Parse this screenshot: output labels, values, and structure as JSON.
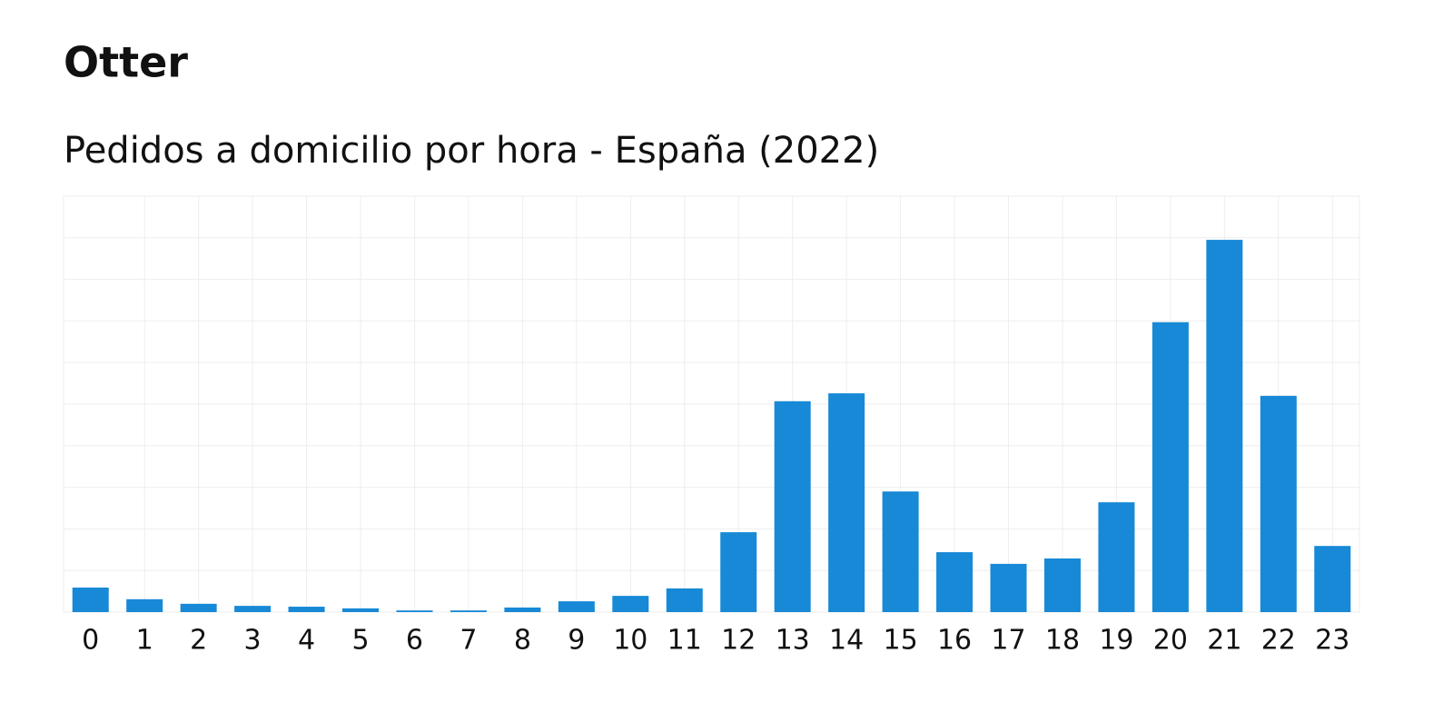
{
  "brand": "Otter",
  "chart_data": {
    "type": "bar",
    "title": "Pedidos a domicilio por hora - España (2022)",
    "categories": [
      "0",
      "1",
      "2",
      "3",
      "4",
      "5",
      "6",
      "7",
      "8",
      "9",
      "10",
      "11",
      "12",
      "13",
      "14",
      "15",
      "16",
      "17",
      "18",
      "19",
      "20",
      "21",
      "22",
      "23"
    ],
    "values": [
      0.59,
      0.31,
      0.2,
      0.15,
      0.13,
      0.09,
      0.04,
      0.04,
      0.11,
      0.26,
      0.39,
      0.57,
      1.92,
      5.07,
      5.26,
      2.9,
      1.44,
      1.16,
      1.29,
      2.64,
      6.97,
      8.95,
      5.2,
      1.59
    ],
    "color": "#1789d6",
    "ylim": [
      0,
      10
    ],
    "yticks": [
      0,
      1,
      2,
      3,
      4,
      5,
      6,
      7,
      8,
      9,
      10
    ],
    "ytick_labels": false,
    "grid": true
  }
}
